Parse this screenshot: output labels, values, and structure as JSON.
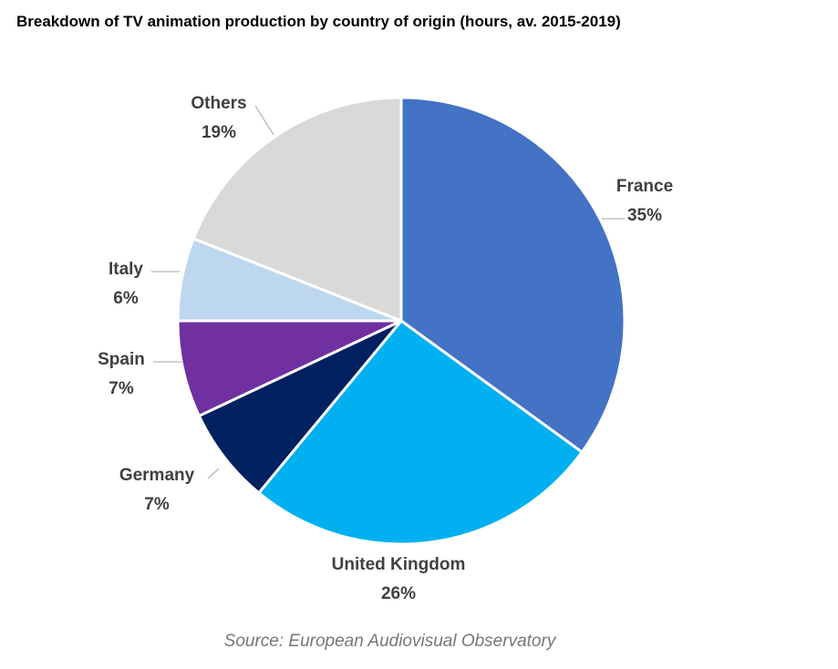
{
  "chart_data": {
    "type": "pie",
    "title": "Breakdown of TV animation production by country of origin (hours, av. 2015-2019)",
    "start": "12 o'clock, clockwise",
    "slices": [
      {
        "name": "France",
        "value": 35,
        "label": "35%",
        "color": "#4472C4"
      },
      {
        "name": "United Kingdom",
        "value": 26,
        "label": "26%",
        "color": "#00B0F0"
      },
      {
        "name": "Germany",
        "value": 7,
        "label": "7%",
        "color": "#002060"
      },
      {
        "name": "Spain",
        "value": 7,
        "label": "7%",
        "color": "#7030A0"
      },
      {
        "name": "Italy",
        "value": 6,
        "label": "6%",
        "color": "#BDD7EE"
      },
      {
        "name": "Others",
        "value": 19,
        "label": "19%",
        "color": "#D9D9D9"
      }
    ]
  },
  "source": "Source: European Audiovisual Observatory"
}
